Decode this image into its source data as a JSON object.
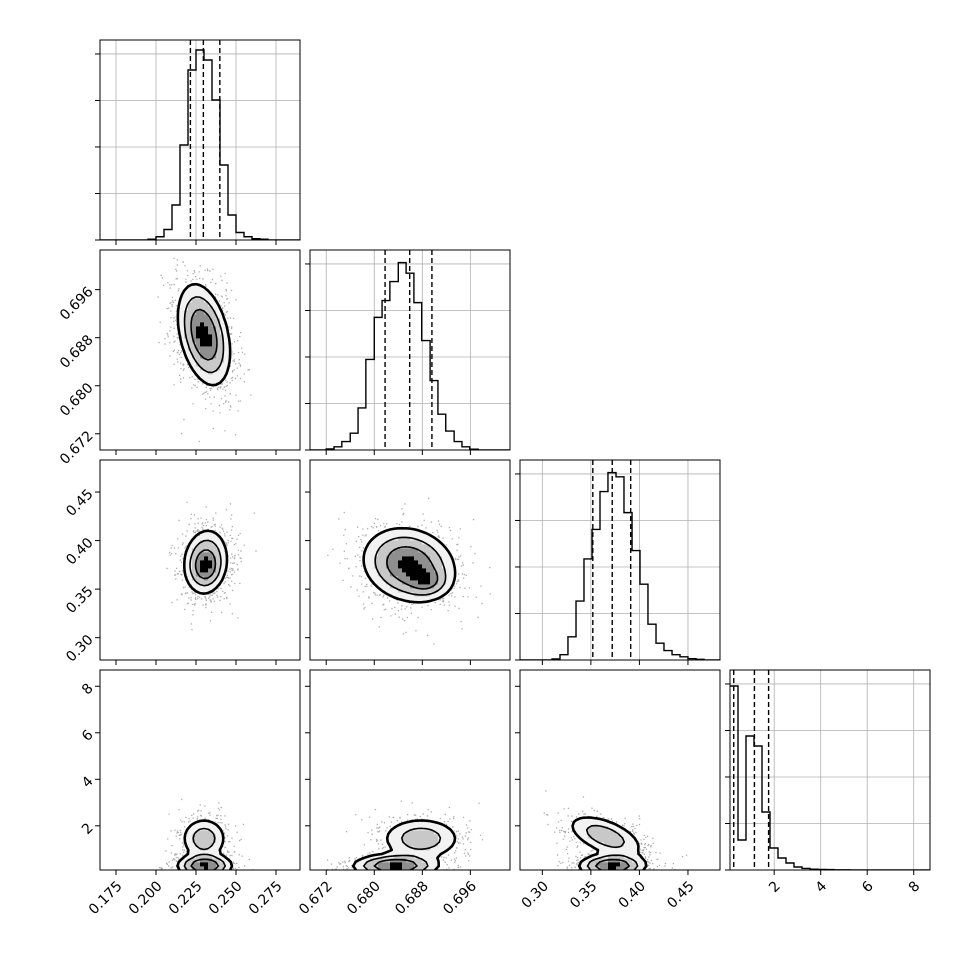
{
  "chart_data": {
    "type": "corner",
    "parameters": [
      {
        "range": [
          0.165,
          0.29
        ],
        "ticks": [
          {
            "v": 0.175,
            "label": "0.175"
          },
          {
            "v": 0.2,
            "label": "0.200"
          },
          {
            "v": 0.225,
            "label": "0.225"
          },
          {
            "v": 0.25,
            "label": "0.250"
          },
          {
            "v": 0.275,
            "label": "0.275"
          }
        ],
        "quantiles": [
          0.2215,
          0.2296,
          0.2399
        ],
        "hist": {
          "edges": [
            0.165,
            0.17,
            0.175,
            0.18,
            0.185,
            0.19,
            0.195,
            0.2,
            0.205,
            0.21,
            0.215,
            0.22,
            0.225,
            0.23,
            0.235,
            0.24,
            0.245,
            0.25,
            0.255,
            0.26,
            0.265,
            0.27,
            0.275,
            0.28,
            0.285,
            0.29
          ],
          "counts": [
            0,
            0,
            0,
            0,
            0,
            0,
            0.3,
            1.3,
            4.2,
            14,
            38,
            68,
            76,
            72,
            56,
            30,
            10,
            3,
            1.3,
            0.5,
            0.3,
            0,
            0,
            0,
            0
          ],
          "ymax": 80
        }
      },
      {
        "range": [
          0.6693,
          0.7026
        ],
        "ticks": [
          {
            "v": 0.672,
            "label": "0.672"
          },
          {
            "v": 0.68,
            "label": "0.680"
          },
          {
            "v": 0.688,
            "label": "0.688"
          },
          {
            "v": 0.696,
            "label": "0.696"
          }
        ],
        "quantiles": [
          0.6818,
          0.6859,
          0.6896
        ],
        "hist": {
          "edges": [
            0.6693,
            0.6706,
            0.672,
            0.6733,
            0.6746,
            0.676,
            0.6773,
            0.6786,
            0.68,
            0.6813,
            0.6826,
            0.684,
            0.6853,
            0.6866,
            0.6879,
            0.6893,
            0.6906,
            0.6919,
            0.6933,
            0.6946,
            0.6959,
            0.6973,
            0.6986,
            0.6999,
            0.7013,
            0.7026
          ],
          "counts": [
            0,
            0,
            0.5,
            1.5,
            4,
            8,
            20,
            43,
            63,
            71,
            80,
            89,
            84,
            70,
            52,
            33,
            17,
            9,
            4,
            1.5,
            0.4,
            0,
            0,
            0,
            0
          ],
          "ymax": 95
        }
      },
      {
        "range": [
          0.277,
          0.483
        ],
        "ticks": [
          {
            "v": 0.3,
            "label": "0.30"
          },
          {
            "v": 0.35,
            "label": "0.35"
          },
          {
            "v": 0.4,
            "label": "0.40"
          },
          {
            "v": 0.45,
            "label": "0.45"
          }
        ],
        "quantiles": [
          0.352,
          0.372,
          0.391
        ],
        "hist": {
          "edges": [
            0.277,
            0.2852,
            0.2935,
            0.3017,
            0.31,
            0.3182,
            0.3264,
            0.3347,
            0.3429,
            0.3512,
            0.3594,
            0.3676,
            0.3759,
            0.3841,
            0.3924,
            0.4006,
            0.4088,
            0.4171,
            0.4253,
            0.4336,
            0.4418,
            0.45,
            0.4583,
            0.4665,
            0.4748,
            0.483
          ],
          "counts": [
            0,
            0,
            0,
            0,
            0.5,
            2.5,
            11,
            28,
            48,
            62,
            80,
            89,
            87,
            70,
            52,
            36,
            17,
            8,
            4.5,
            2.5,
            1.5,
            0.6,
            0.3,
            0,
            0
          ],
          "ymax": 95
        }
      },
      {
        "range": [
          0.1,
          8.7
        ],
        "ticks": [
          {
            "v": 2,
            "label": "2"
          },
          {
            "v": 4,
            "label": "4"
          },
          {
            "v": 6,
            "label": "6"
          },
          {
            "v": 8,
            "label": "8"
          }
        ],
        "quantiles": [
          0.26,
          1.15,
          1.76
        ],
        "hist": {
          "edges": [
            0.1,
            0.444,
            0.788,
            1.132,
            1.476,
            1.82,
            2.164,
            2.508,
            2.852,
            3.196,
            3.54,
            3.884,
            4.228,
            4.572,
            4.916,
            5.26,
            5.604,
            5.948,
            6.292,
            6.636,
            6.98,
            7.324,
            7.668,
            8.012,
            8.356,
            8.7
          ],
          "counts": [
            92,
            15,
            67,
            62,
            29,
            11,
            6,
            3.5,
            1.5,
            0.8,
            0.4,
            0.3,
            0.2,
            0.1,
            0.1,
            0,
            0,
            0,
            0,
            0,
            0,
            0,
            0,
            0,
            0
          ],
          "ymax": 100
        }
      }
    ],
    "pairs": [
      {
        "row": 1,
        "col": 0,
        "density": [
          {
            "x": 0.23,
            "y": 0.6885,
            "sx": 0.0081,
            "sy": 0.0042,
            "r": -0.35,
            "w": 1
          }
        ]
      },
      {
        "row": 2,
        "col": 0,
        "density": [
          {
            "x": 0.231,
            "y": 0.378,
            "sx": 0.0072,
            "sy": 0.0175,
            "r": 0.1,
            "w": 1
          },
          {
            "x": 0.231,
            "y": 0.372,
            "sx": 0.0045,
            "sy": 0.0095,
            "r": 0,
            "w": 0.45
          }
        ]
      },
      {
        "row": 2,
        "col": 1,
        "density": [
          {
            "x": 0.6858,
            "y": 0.375,
            "sx": 0.0038,
            "sy": 0.019,
            "r": -0.15,
            "w": 1
          },
          {
            "x": 0.6888,
            "y": 0.358,
            "sx": 0.0018,
            "sy": 0.008,
            "r": 0,
            "w": 0.4
          }
        ]
      },
      {
        "row": 3,
        "col": 0,
        "density": [
          {
            "x": 0.2305,
            "y": 0.28,
            "sx": 0.0085,
            "sy": 0.25,
            "r": 0,
            "w": 1.5
          },
          {
            "x": 0.23,
            "y": 1.45,
            "sx": 0.0075,
            "sy": 0.48,
            "r": 0,
            "w": 0.75
          }
        ]
      },
      {
        "row": 3,
        "col": 1,
        "density": [
          {
            "x": 0.6835,
            "y": 0.28,
            "sx": 0.0035,
            "sy": 0.25,
            "r": 0,
            "w": 1.5
          },
          {
            "x": 0.6878,
            "y": 1.45,
            "sx": 0.0035,
            "sy": 0.48,
            "r": 0,
            "w": 0.75
          }
        ]
      },
      {
        "row": 3,
        "col": 2,
        "density": [
          {
            "x": 0.372,
            "y": 0.28,
            "sx": 0.017,
            "sy": 0.25,
            "r": 0,
            "w": 1.5
          },
          {
            "x": 0.365,
            "y": 1.55,
            "sx": 0.021,
            "sy": 0.5,
            "r": -0.55,
            "w": 0.75
          }
        ]
      }
    ],
    "grid": true
  }
}
